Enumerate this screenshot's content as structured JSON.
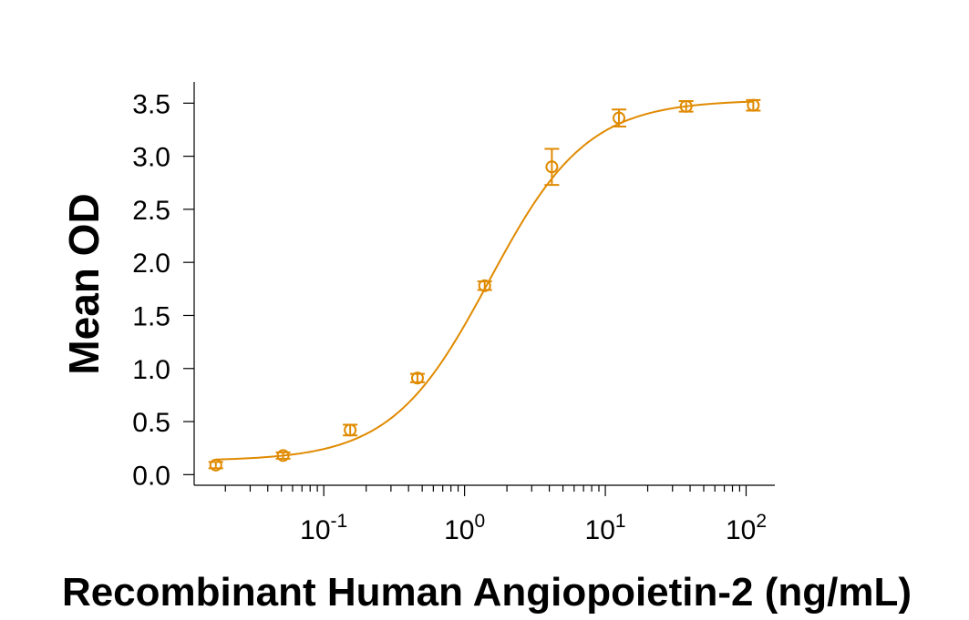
{
  "chart_data": {
    "type": "scatter",
    "title": "",
    "xlabel": "Recombinant Human Angiopoietin-2 (ng/mL)",
    "ylabel": "Mean OD",
    "x_scale": "log",
    "xlim": [
      0.012,
      160
    ],
    "ylim": [
      -0.1,
      3.7
    ],
    "yticks": [
      0.0,
      0.5,
      1.0,
      1.5,
      2.0,
      2.5,
      3.0,
      3.5
    ],
    "ytick_labels": [
      "0.0",
      "0.5",
      "1.0",
      "1.5",
      "2.0",
      "2.5",
      "3.0",
      "3.5"
    ],
    "xticks": [
      {
        "value": 0.1,
        "base": "10",
        "exp": "-1"
      },
      {
        "value": 1,
        "base": "10",
        "exp": "0"
      },
      {
        "value": 10,
        "base": "10",
        "exp": "1"
      },
      {
        "value": 100,
        "base": "10",
        "exp": "2"
      }
    ],
    "grid": false,
    "series": [
      {
        "color": "#E08A00",
        "points": [
          {
            "x": 0.0171,
            "y": 0.09,
            "err": 0.03
          },
          {
            "x": 0.0514,
            "y": 0.18,
            "err": 0.03
          },
          {
            "x": 0.154,
            "y": 0.42,
            "err": 0.05
          },
          {
            "x": 0.463,
            "y": 0.91,
            "err": 0.04
          },
          {
            "x": 1.39,
            "y": 1.78,
            "err": 0.04
          },
          {
            "x": 4.17,
            "y": 2.9,
            "err": 0.17
          },
          {
            "x": 12.5,
            "y": 3.36,
            "err": 0.08
          },
          {
            "x": 37.5,
            "y": 3.47,
            "err": 0.05
          },
          {
            "x": 112.5,
            "y": 3.48,
            "err": 0.05
          }
        ],
        "fit": {
          "type": "4PL",
          "bottom": 0.13,
          "top": 3.53,
          "ec50": 1.5,
          "hill": 1.25
        }
      }
    ]
  }
}
